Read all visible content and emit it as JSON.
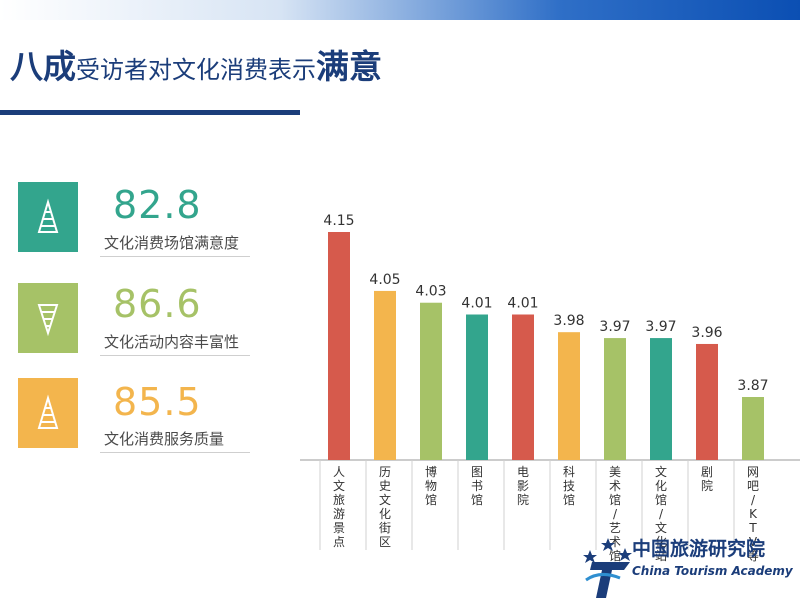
{
  "title": {
    "part1": "八成",
    "part2": "受访者对文化消费表示",
    "part3": "满意"
  },
  "stats": [
    {
      "value": "82.8",
      "label": "文化消费场馆满意度",
      "icon": "triangle-up-icon",
      "color": "#33a58d"
    },
    {
      "value": "86.6",
      "label": "文化活动内容丰富性",
      "icon": "triangle-down-icon",
      "color": "#a6c267"
    },
    {
      "value": "85.5",
      "label": "文化消费服务质量",
      "icon": "triangle-up-icon",
      "color": "#f3b54d"
    }
  ],
  "chart_data": {
    "type": "bar",
    "categories": [
      "人文旅游景点",
      "历史文化街区",
      "博物馆",
      "图书馆",
      "电影院",
      "科技馆",
      "美术馆/艺术馆",
      "文化馆/文化站",
      "剧院",
      "网吧/KTV等"
    ],
    "values": [
      4.15,
      4.05,
      4.03,
      4.01,
      4.01,
      3.98,
      3.97,
      3.97,
      3.96,
      3.87
    ],
    "value_labels": [
      "4.15",
      "4.05",
      "4.03",
      "4.01",
      "4.01",
      "3.98",
      "3.97",
      "3.97",
      "3.96",
      "3.87"
    ],
    "bar_colors": [
      "#d65a4c",
      "#f3b54d",
      "#a6c267",
      "#33a58d",
      "#d65a4c",
      "#f3b54d",
      "#a6c267",
      "#33a58d",
      "#d65a4c",
      "#a6c267"
    ],
    "title": "",
    "xlabel": "",
    "ylabel": ""
  },
  "logo": {
    "cn": "中国旅游研究院",
    "en": "China Tourism Academy"
  }
}
